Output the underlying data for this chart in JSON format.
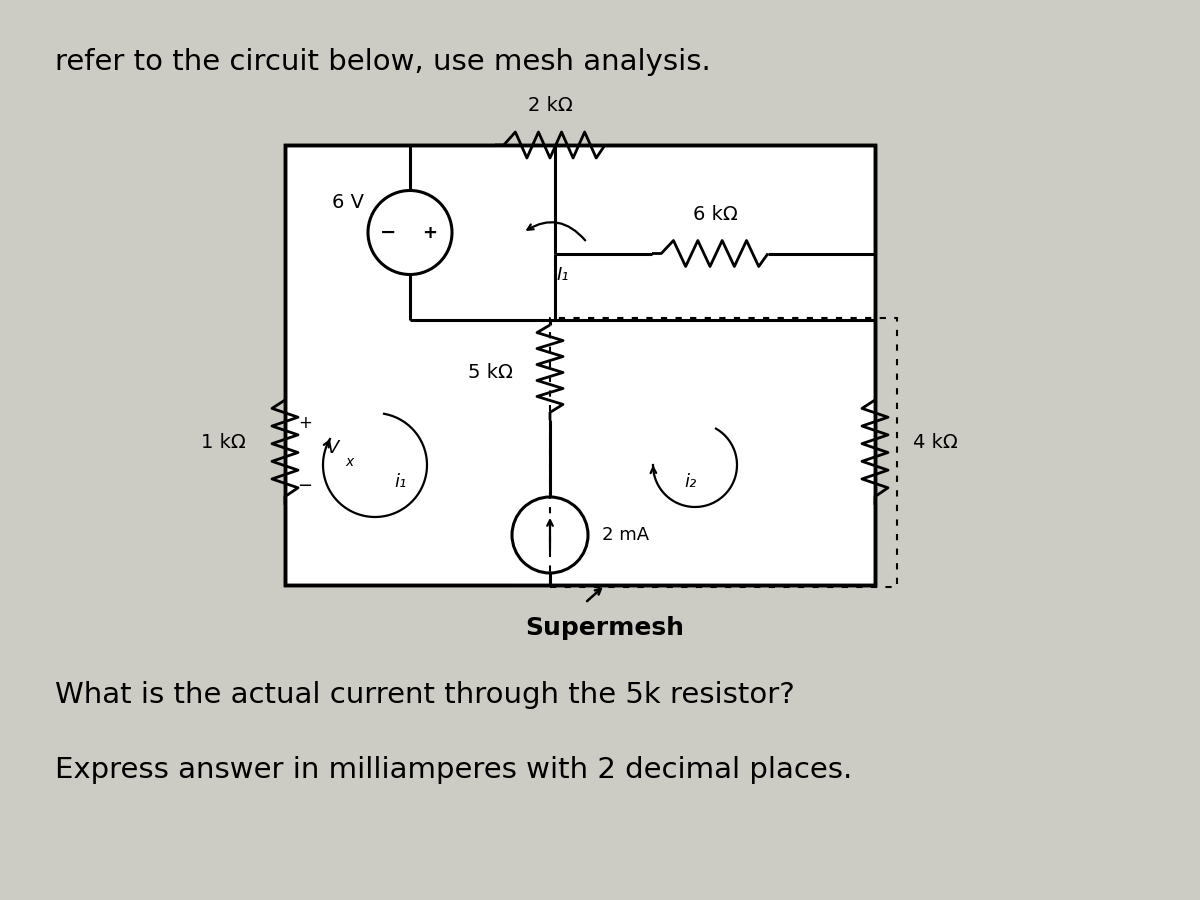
{
  "title_text": "refer to the circuit below, use mesh analysis.",
  "question_text": "What is the actual current through the 5k resistor?",
  "answer_text": "Express answer in milliamperes with 2 decimal places.",
  "bg_color": "#cccbc4",
  "text_color": "#000000",
  "title_fontsize": 21,
  "question_fontsize": 21,
  "answer_fontsize": 21,
  "labels": {
    "2k": "2 kΩ",
    "6k": "6 kΩ",
    "5k": "5 kΩ",
    "4k": "4 kΩ",
    "1k": "1 kΩ",
    "6V": "6 V",
    "2mA": "2 mA",
    "I1": "I₁",
    "i1": "i₁",
    "i2": "i₂",
    "Vx": "V",
    "supermesh": "Supermesh"
  }
}
